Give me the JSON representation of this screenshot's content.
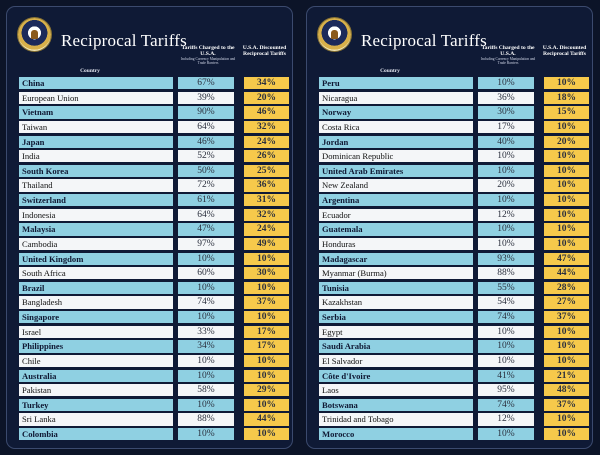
{
  "panels": [
    {
      "title": "Reciprocal Tariffs",
      "country_header": "Country",
      "charged_header": "Tariffs Charged to the U.S.A.",
      "charged_subheader": "Including Currency Manipulation and Trade Barriers",
      "discount_header": "U.S.A. Discounted Reciprocal Tariffs",
      "rows": [
        {
          "country": "China",
          "charged": "67%",
          "discounted": "34%"
        },
        {
          "country": "European Union",
          "charged": "39%",
          "discounted": "20%"
        },
        {
          "country": "Vietnam",
          "charged": "90%",
          "discounted": "46%"
        },
        {
          "country": "Taiwan",
          "charged": "64%",
          "discounted": "32%"
        },
        {
          "country": "Japan",
          "charged": "46%",
          "discounted": "24%"
        },
        {
          "country": "India",
          "charged": "52%",
          "discounted": "26%"
        },
        {
          "country": "South Korea",
          "charged": "50%",
          "discounted": "25%"
        },
        {
          "country": "Thailand",
          "charged": "72%",
          "discounted": "36%"
        },
        {
          "country": "Switzerland",
          "charged": "61%",
          "discounted": "31%"
        },
        {
          "country": "Indonesia",
          "charged": "64%",
          "discounted": "32%"
        },
        {
          "country": "Malaysia",
          "charged": "47%",
          "discounted": "24%"
        },
        {
          "country": "Cambodia",
          "charged": "97%",
          "discounted": "49%"
        },
        {
          "country": "United Kingdom",
          "charged": "10%",
          "discounted": "10%"
        },
        {
          "country": "South Africa",
          "charged": "60%",
          "discounted": "30%"
        },
        {
          "country": "Brazil",
          "charged": "10%",
          "discounted": "10%"
        },
        {
          "country": "Bangladesh",
          "charged": "74%",
          "discounted": "37%"
        },
        {
          "country": "Singapore",
          "charged": "10%",
          "discounted": "10%"
        },
        {
          "country": "Israel",
          "charged": "33%",
          "discounted": "17%"
        },
        {
          "country": "Philippines",
          "charged": "34%",
          "discounted": "17%"
        },
        {
          "country": "Chile",
          "charged": "10%",
          "discounted": "10%"
        },
        {
          "country": "Australia",
          "charged": "10%",
          "discounted": "10%"
        },
        {
          "country": "Pakistan",
          "charged": "58%",
          "discounted": "29%"
        },
        {
          "country": "Turkey",
          "charged": "10%",
          "discounted": "10%"
        },
        {
          "country": "Sri Lanka",
          "charged": "88%",
          "discounted": "44%"
        },
        {
          "country": "Colombia",
          "charged": "10%",
          "discounted": "10%"
        }
      ]
    },
    {
      "title": "Reciprocal Tariffs",
      "country_header": "Country",
      "charged_header": "Tariffs Charged to the U.S.A.",
      "charged_subheader": "Including Currency Manipulation and Trade Barriers",
      "discount_header": "U.S.A. Discounted Reciprocal Tariffs",
      "rows": [
        {
          "country": "Peru",
          "charged": "10%",
          "discounted": "10%"
        },
        {
          "country": "Nicaragua",
          "charged": "36%",
          "discounted": "18%"
        },
        {
          "country": "Norway",
          "charged": "30%",
          "discounted": "15%"
        },
        {
          "country": "Costa Rica",
          "charged": "17%",
          "discounted": "10%"
        },
        {
          "country": "Jordan",
          "charged": "40%",
          "discounted": "20%"
        },
        {
          "country": "Dominican Republic",
          "charged": "10%",
          "discounted": "10%"
        },
        {
          "country": "United Arab Emirates",
          "charged": "10%",
          "discounted": "10%"
        },
        {
          "country": "New Zealand",
          "charged": "20%",
          "discounted": "10%"
        },
        {
          "country": "Argentina",
          "charged": "10%",
          "discounted": "10%"
        },
        {
          "country": "Ecuador",
          "charged": "12%",
          "discounted": "10%"
        },
        {
          "country": "Guatemala",
          "charged": "10%",
          "discounted": "10%"
        },
        {
          "country": "Honduras",
          "charged": "10%",
          "discounted": "10%"
        },
        {
          "country": "Madagascar",
          "charged": "93%",
          "discounted": "47%"
        },
        {
          "country": "Myanmar (Burma)",
          "charged": "88%",
          "discounted": "44%"
        },
        {
          "country": "Tunisia",
          "charged": "55%",
          "discounted": "28%"
        },
        {
          "country": "Kazakhstan",
          "charged": "54%",
          "discounted": "27%"
        },
        {
          "country": "Serbia",
          "charged": "74%",
          "discounted": "37%"
        },
        {
          "country": "Egypt",
          "charged": "10%",
          "discounted": "10%"
        },
        {
          "country": "Saudi Arabia",
          "charged": "10%",
          "discounted": "10%"
        },
        {
          "country": "El Salvador",
          "charged": "10%",
          "discounted": "10%"
        },
        {
          "country": "Côte d'Ivoire",
          "charged": "41%",
          "discounted": "21%"
        },
        {
          "country": "Laos",
          "charged": "95%",
          "discounted": "48%"
        },
        {
          "country": "Botswana",
          "charged": "74%",
          "discounted": "37%"
        },
        {
          "country": "Trinidad and Tobago",
          "charged": "12%",
          "discounted": "10%"
        },
        {
          "country": "Morocco",
          "charged": "10%",
          "discounted": "10%"
        }
      ]
    }
  ],
  "colors": {
    "background": "#0c1428",
    "panel": "#0f1a36",
    "row_blue": "#8fd0e2",
    "row_white": "#f4f6f8",
    "discount_cell": "#f6c94b"
  },
  "icons": {
    "seal": "presidential-seal-icon"
  }
}
